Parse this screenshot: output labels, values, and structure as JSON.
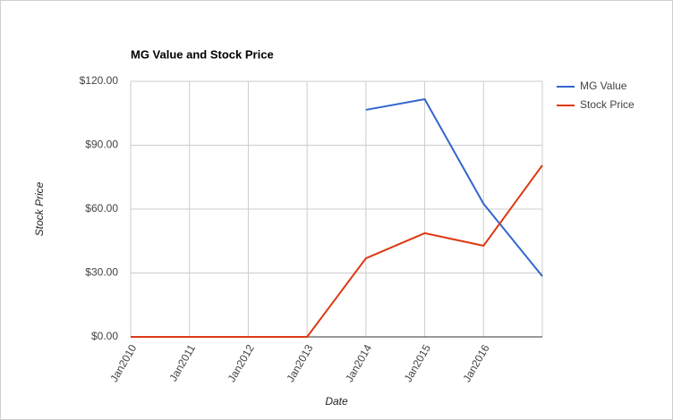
{
  "chart_data": {
    "type": "line",
    "title": "MG Value and Stock Price",
    "x_label": "Date",
    "y_label": "Stock Price",
    "categories": [
      "Jan2010",
      "Jan2011",
      "Jan2012",
      "Jan2013",
      "Jan2014",
      "Jan2015",
      "Jan2016",
      null
    ],
    "series": [
      {
        "name": "MG Value",
        "color": "#3366cc",
        "values": [
          null,
          null,
          null,
          null,
          106.6,
          111.6,
          62.5,
          28.5
        ]
      },
      {
        "name": "Stock Price",
        "color": "#dc3912",
        "values": [
          0,
          0,
          0,
          0,
          36.9,
          48.7,
          42.8,
          80.6
        ]
      }
    ],
    "ylim": [
      0,
      120
    ],
    "yticks": [
      {
        "value": 0,
        "label": "$0.00"
      },
      {
        "value": 30,
        "label": "$30.00"
      },
      {
        "value": 60,
        "label": "$60.00"
      },
      {
        "value": 90,
        "label": "$90.00"
      },
      {
        "value": 120,
        "label": "$120.00"
      }
    ],
    "grid": true,
    "legend": "right"
  }
}
